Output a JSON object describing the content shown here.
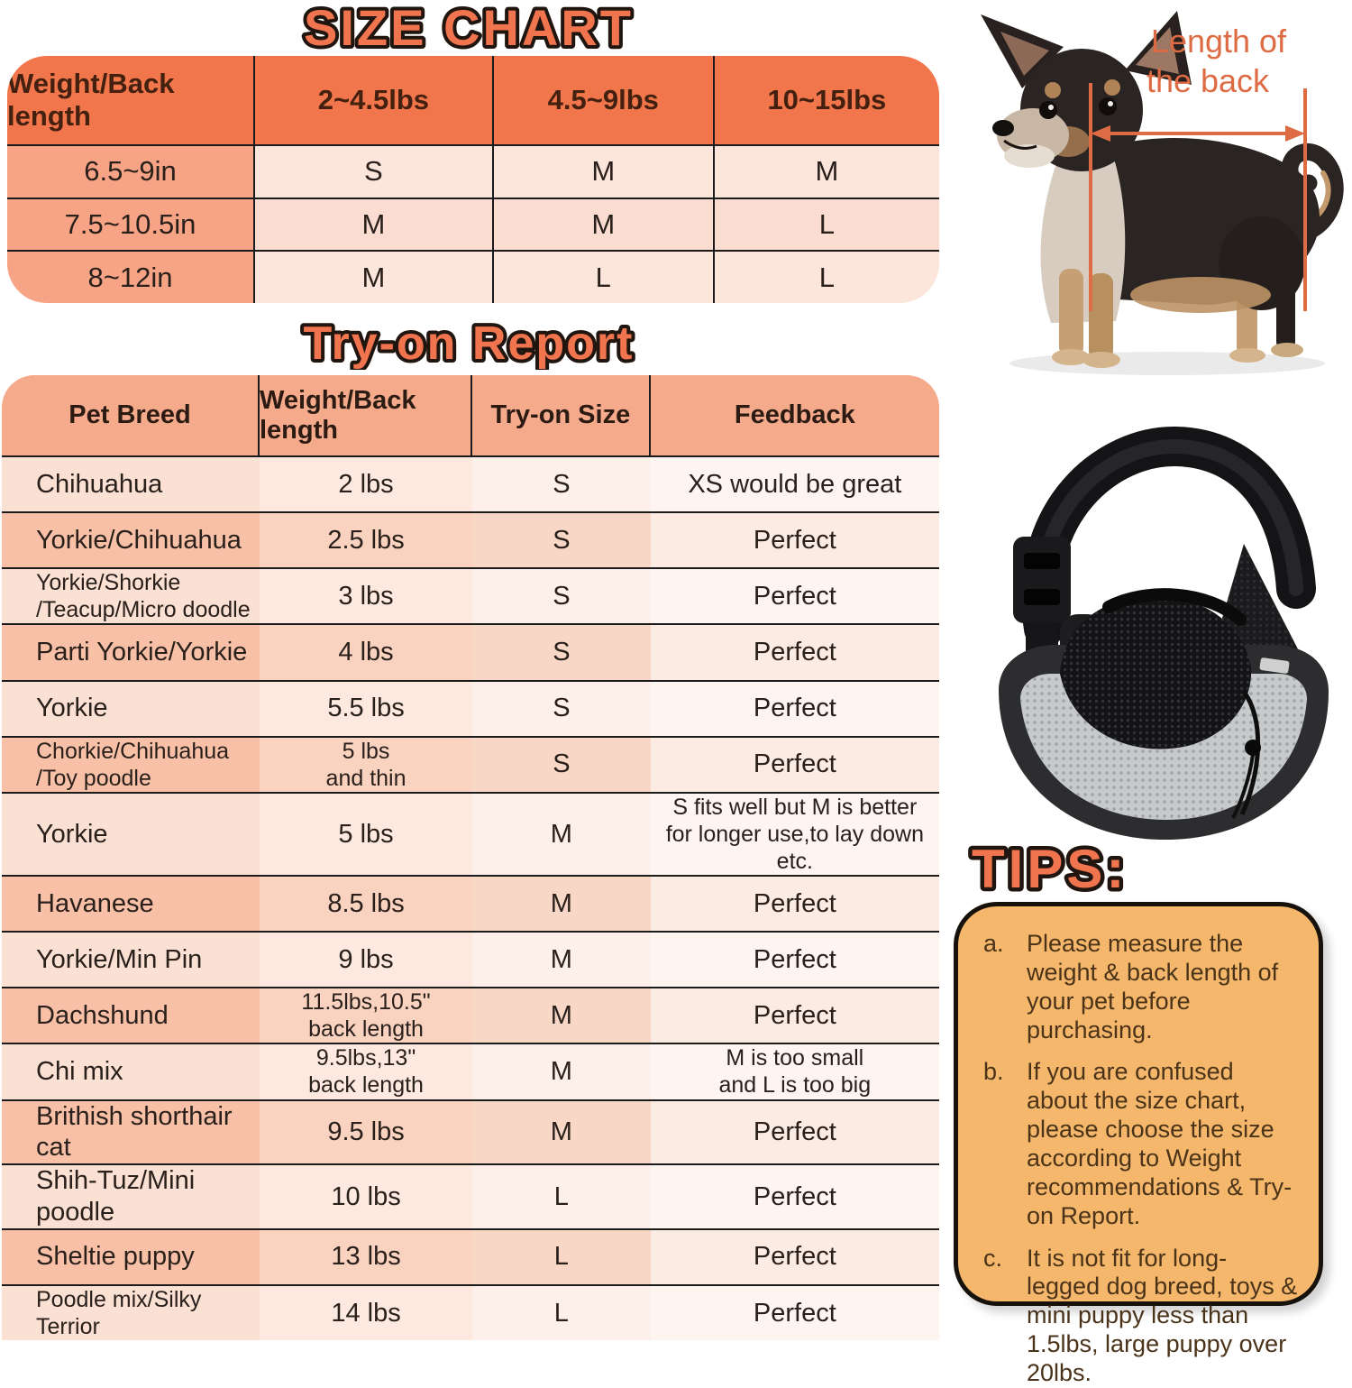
{
  "colors": {
    "accent_orange": "#F0744E",
    "size_chart_header": "#F2764B",
    "salmon_cell": "#F7A385",
    "light_cell": "#FCE5DB",
    "tryon_header": "#F5AA8B",
    "tips_box": "#F5B76B",
    "annotation_orange": "#DD6B43",
    "line_black": "#1B1B1B"
  },
  "size_chart": {
    "title": "SIZE CHART",
    "columns": [
      "Weight/Back length",
      "2~4.5lbs",
      "4.5~9lbs",
      "10~15lbs"
    ],
    "rows": [
      {
        "back_length": "6.5~9in",
        "sizes": [
          "S",
          "M",
          "M"
        ]
      },
      {
        "back_length": "7.5~10.5in",
        "sizes": [
          "M",
          "M",
          "L"
        ]
      },
      {
        "back_length": "8~12in",
        "sizes": [
          "M",
          "L",
          "L"
        ]
      }
    ]
  },
  "tryon_report": {
    "title": "Try-on Report",
    "columns": [
      "Pet Breed",
      "Weight/Back length",
      "Try-on Size",
      "Feedback"
    ],
    "rows": [
      {
        "breed": "Chihuahua",
        "weight": "2 lbs",
        "size": "S",
        "feedback": "XS would be great"
      },
      {
        "breed": "Yorkie/Chihuahua",
        "weight": "2.5 lbs",
        "size": "S",
        "feedback": "Perfect"
      },
      {
        "breed": "Yorkie/Shorkie\n/Teacup/Micro doodle",
        "weight": "3 lbs",
        "size": "S",
        "feedback": "Perfect"
      },
      {
        "breed": "Parti Yorkie/Yorkie",
        "weight": "4 lbs",
        "size": "S",
        "feedback": "Perfect"
      },
      {
        "breed": "Yorkie",
        "weight": "5.5 lbs",
        "size": "S",
        "feedback": "Perfect"
      },
      {
        "breed": "Chorkie/Chihuahua\n/Toy poodle",
        "weight": "5 lbs\nand thin",
        "size": "S",
        "feedback": "Perfect"
      },
      {
        "breed": "Yorkie",
        "weight": "5 lbs",
        "size": "M",
        "feedback": "S fits well but M is better\nfor longer use,to lay down etc."
      },
      {
        "breed": "Havanese",
        "weight": "8.5 lbs",
        "size": "M",
        "feedback": "Perfect"
      },
      {
        "breed": "Yorkie/Min Pin",
        "weight": "9 lbs",
        "size": "M",
        "feedback": "Perfect"
      },
      {
        "breed": "Dachshund",
        "weight": "11.5lbs,10.5\"\nback length",
        "size": "M",
        "feedback": "Perfect"
      },
      {
        "breed": "Chi mix",
        "weight": "9.5lbs,13\"\nback length",
        "size": "M",
        "feedback": "M is too small\nand L is too big"
      },
      {
        "breed": "Brithish shorthair cat",
        "weight": "9.5 lbs",
        "size": "M",
        "feedback": "Perfect"
      },
      {
        "breed": "Shih-Tuz/Mini poodle",
        "weight": "10 lbs",
        "size": "L",
        "feedback": "Perfect"
      },
      {
        "breed": "Sheltie puppy",
        "weight": "13 lbs",
        "size": "L",
        "feedback": "Perfect"
      },
      {
        "breed": "Poodle mix/Silky\nTerrior",
        "weight": "14 lbs",
        "size": "L",
        "feedback": "Perfect"
      }
    ]
  },
  "dog_figure": {
    "caption_lines": [
      "Length of",
      "the back"
    ]
  },
  "tips": {
    "title": "TIPS:",
    "items": [
      {
        "letter": "a.",
        "text": "Please measure the weight & back length of your pet before purchasing."
      },
      {
        "letter": "b.",
        "text": "If you are confused about the size chart, please choose the size according to Weight recommendations & Try-on Report."
      },
      {
        "letter": "c.",
        "text": "It is not fit for long-legged dog breed, toys & mini puppy less than 1.5lbs, large puppy over 20lbs."
      }
    ]
  }
}
